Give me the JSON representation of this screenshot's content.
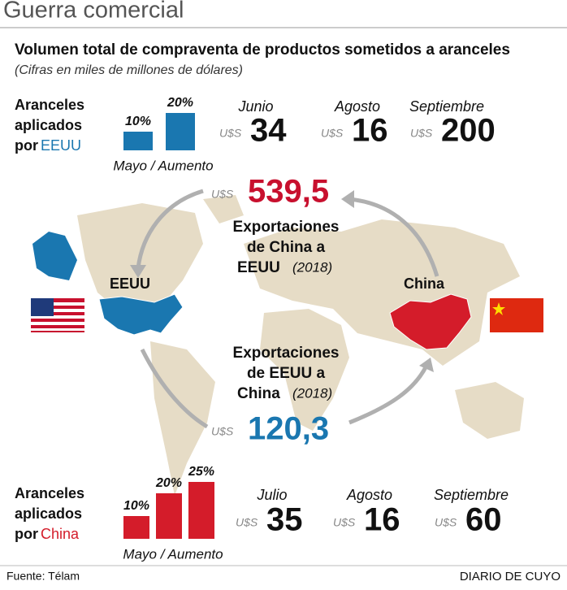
{
  "header": {
    "title": "Guerra comercial",
    "subtitle": "Volumen total de compraventa de productos sometidos a aranceles",
    "note": "(Cifras en miles de millones de dólares)"
  },
  "usa_tariffs": {
    "label": [
      "Aranceles",
      "aplicados",
      "por"
    ],
    "country": "EEUU",
    "bars": [
      {
        "value": 10,
        "label": "10%"
      },
      {
        "value": 20,
        "label": "20%"
      }
    ],
    "caption": "Mayo / Aumento",
    "amounts": [
      {
        "month": "Junio",
        "currency": "U$S",
        "amount": "34"
      },
      {
        "month": "Agosto",
        "currency": "U$S",
        "amount": "16"
      },
      {
        "month": "Septiembre",
        "currency": "U$S",
        "amount": "200"
      }
    ]
  },
  "china_exports": {
    "currency": "U$S",
    "amount": "539,5",
    "label": [
      "Exportaciones",
      "de China a",
      "EEUU"
    ],
    "year": "(2018)"
  },
  "usa_exports": {
    "currency": "U$S",
    "amount": "120,3",
    "label": [
      "Exportaciones",
      "de EEUU a",
      "China"
    ],
    "year": "(2018)"
  },
  "map": {
    "usa": "EEUU",
    "china": "China"
  },
  "china_tariffs": {
    "label": [
      "Aranceles",
      "aplicados",
      "por"
    ],
    "country": "China",
    "bars": [
      {
        "value": 10,
        "label": "10%"
      },
      {
        "value": 20,
        "label": "20%"
      },
      {
        "value": 25,
        "label": "25%"
      }
    ],
    "caption": "Mayo / Aumento",
    "amounts": [
      {
        "month": "Julio",
        "currency": "U$S",
        "amount": "35"
      },
      {
        "month": "Agosto",
        "currency": "U$S",
        "amount": "16"
      },
      {
        "month": "Septiembre",
        "currency": "U$S",
        "amount": "60"
      }
    ]
  },
  "footer": {
    "source": "Fuente: Télam",
    "brand": "DIARIO DE CUYO"
  }
}
